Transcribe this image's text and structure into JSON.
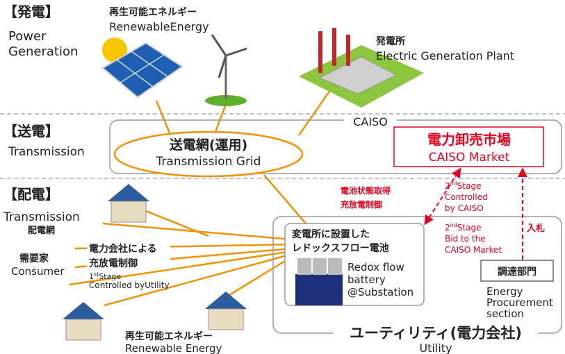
{
  "generation": {
    "label": "【発電】",
    "en": [
      "Power",
      "Generation"
    ]
  },
  "renewable_top": {
    "ja": "再生可能エネルギー",
    "en": "RenewableEnergy"
  },
  "plant": {
    "ja": "発電所",
    "en": "Electric Generation Plant"
  },
  "transmission": {
    "label": "【送電】",
    "en": "Transmission"
  },
  "caiso": "CAISO",
  "grid": {
    "ja": "送電網(運用)",
    "en": "Transmission Grid"
  },
  "market": {
    "ja": "電力卸売市場",
    "en": "CAISO Market"
  },
  "distribution": {
    "label": "【配電】",
    "en": "Transmission",
    "ja": "配電網"
  },
  "battery_status": [
    "電池状態取得",
    "充放電制御"
  ],
  "stage2_control": {
    "num": "2",
    "sup": "nd",
    "rest": "Stage",
    "lines": [
      "Controlled",
      "by CAISO"
    ]
  },
  "stage2_bid": {
    "num": "2",
    "sup": "nd",
    "rest": "Stage",
    "lines": [
      "Bid to the",
      "CAISO Market"
    ]
  },
  "bid": "入札",
  "substation": {
    "ja": [
      "変電所に設置した",
      "レドックスフロー電池"
    ],
    "en": [
      "Redox flow",
      "battery",
      "@Substation"
    ]
  },
  "procurement": {
    "ja": "調達部門",
    "en": [
      "Energy",
      "Procurement",
      "section"
    ]
  },
  "consumer": {
    "ja": "需要家",
    "en": "Consumer"
  },
  "utility_control": {
    "ja": [
      "電力会社による",
      "充放電制御"
    ],
    "num": "1",
    "sup": "st",
    "rest": "Stage",
    "line": "Controlled byUtility"
  },
  "renewable_bottom": {
    "ja": "再生可能エネルギー",
    "en": "Renewable Energy"
  },
  "utility": {
    "ja": "ユーティリティ(電力会社)",
    "en": "Utility"
  }
}
